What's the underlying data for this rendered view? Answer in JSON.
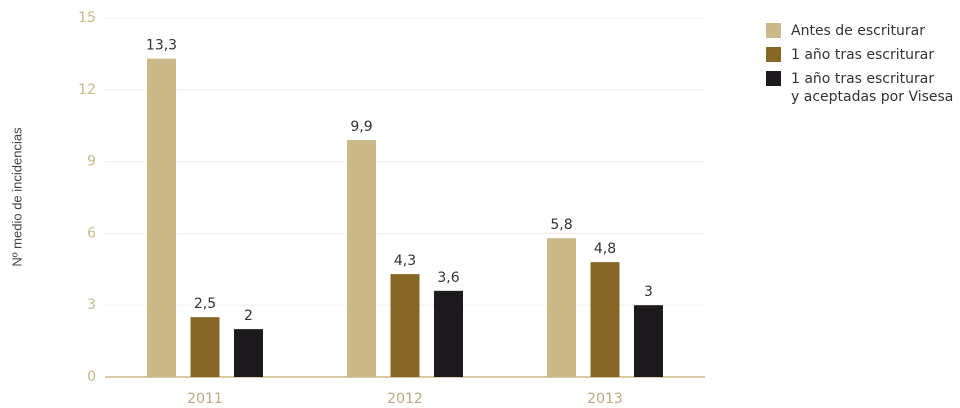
{
  "chart_data": {
    "type": "bar",
    "y_label": "Nº medio de incidencias",
    "categories": [
      "2011",
      "2012",
      "2013"
    ],
    "series": [
      {
        "name": "Antes de escriturar",
        "color": "#cbb98a",
        "values": [
          13.3,
          9.9,
          5.8
        ],
        "value_labels": [
          "13,3",
          "9,9",
          "5,8"
        ]
      },
      {
        "name": "1 año tras escriturar",
        "color": "#876725",
        "values": [
          2.5,
          4.3,
          4.8
        ],
        "value_labels": [
          "2,5",
          "4,3",
          "4,8"
        ]
      },
      {
        "name": "1 año tras escriturar\ny aceptadas por Visesa",
        "color": "#1c1a1d",
        "values": [
          2,
          3.6,
          3
        ],
        "value_labels": [
          "2",
          "3,6",
          "3"
        ]
      }
    ],
    "ylim": [
      0,
      15
    ],
    "yticks": [
      0,
      3,
      6,
      9,
      12,
      15
    ],
    "grid": true,
    "legend": "top-right"
  }
}
